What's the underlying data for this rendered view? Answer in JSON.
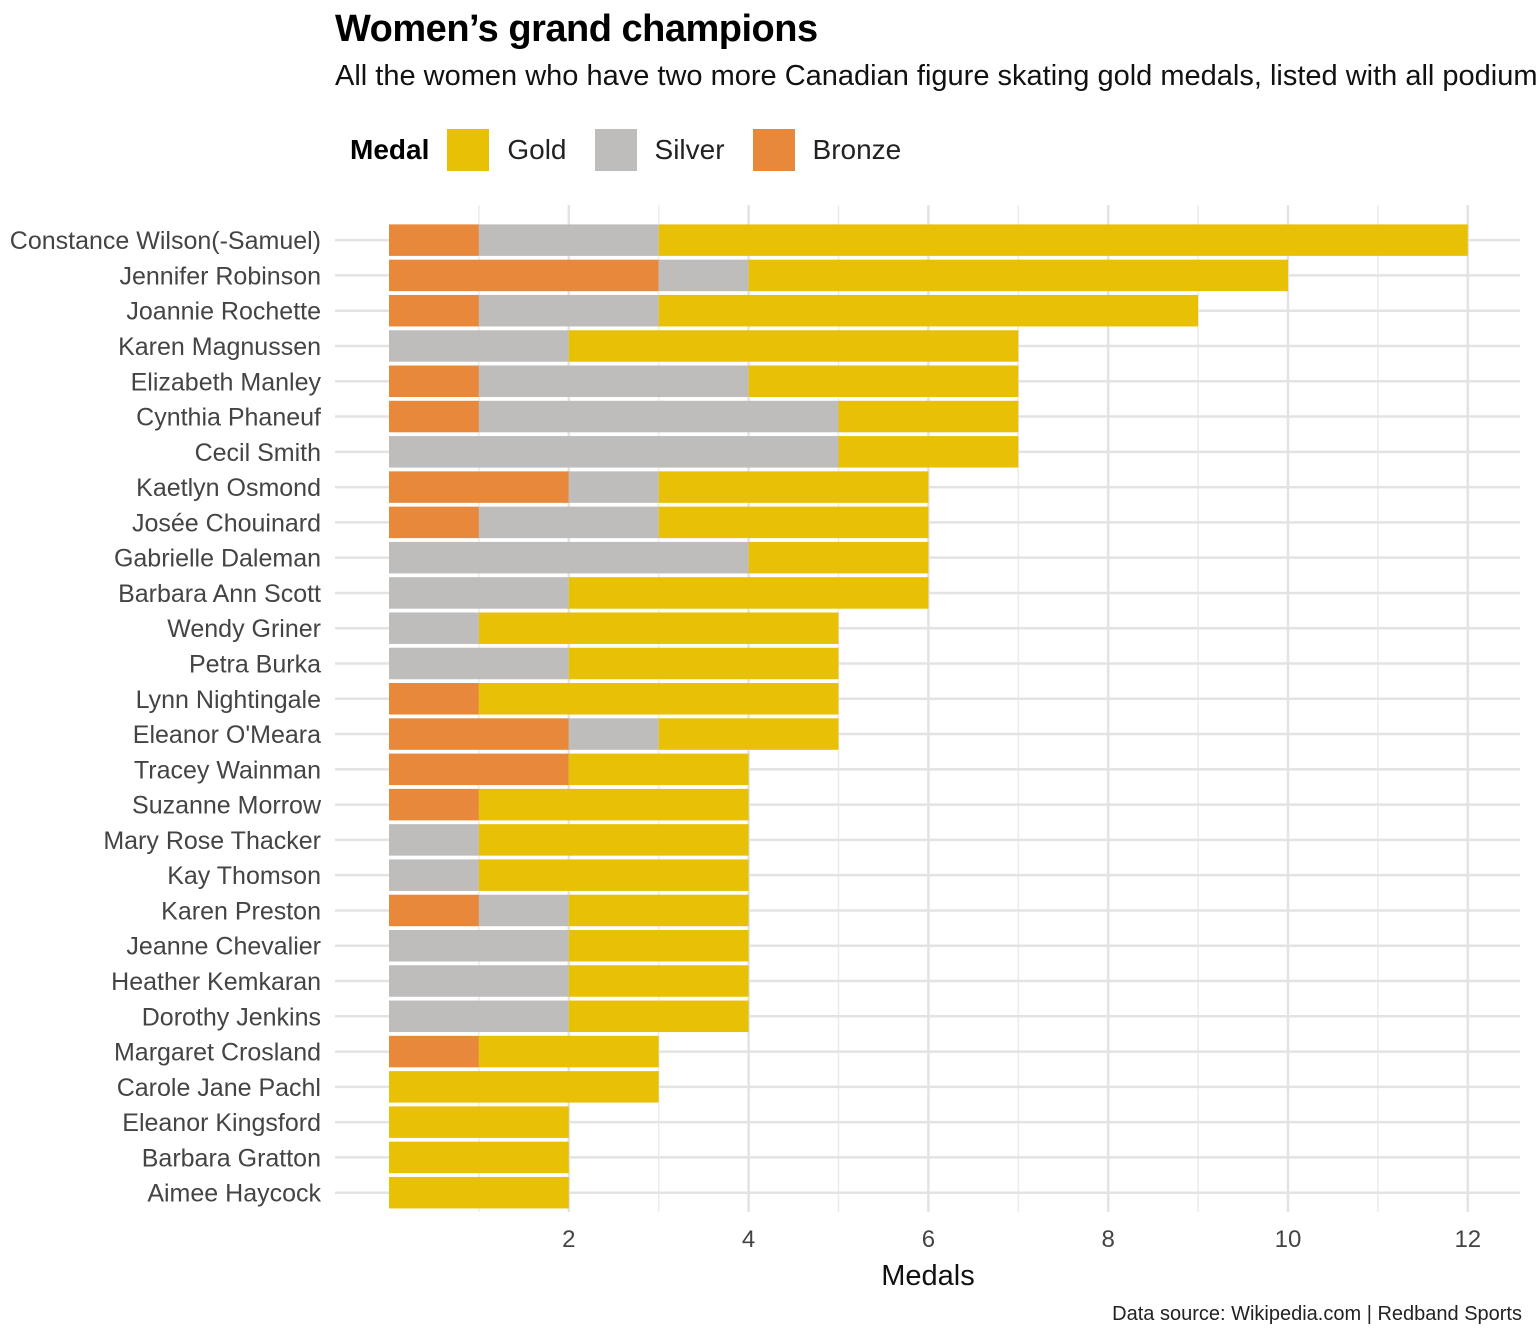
{
  "chart_data": {
    "type": "bar",
    "orientation": "horizontal",
    "stacked": true,
    "title": "Women’s grand champions",
    "subtitle": "All the women who have two more Canadian figure skating gold medals, listed with all podium finishes",
    "xlabel": "Medals",
    "caption": "Data source: Wikipedia.com  |  Redband Sports",
    "xlim": [
      0,
      12.6
    ],
    "xticks": [
      2,
      4,
      6,
      8,
      10,
      12
    ],
    "legend_title": "Medal",
    "legend_position": "top-left",
    "grid": true,
    "categories": [
      "Constance Wilson(-Samuel)",
      "Jennifer Robinson",
      "Joannie Rochette",
      "Karen Magnussen",
      "Elizabeth Manley",
      "Cynthia Phaneuf",
      "Cecil Smith",
      "Kaetlyn Osmond",
      "Josée Chouinard",
      "Gabrielle Daleman",
      "Barbara Ann Scott",
      "Wendy Griner",
      "Petra Burka",
      "Lynn Nightingale",
      "Eleanor O'Meara",
      "Tracey Wainman",
      "Suzanne Morrow",
      "Mary Rose Thacker",
      "Kay Thomson",
      "Karen Preston",
      "Jeanne Chevalier",
      "Heather Kemkaran",
      "Dorothy Jenkins",
      "Margaret Crosland",
      "Carole Jane Pachl",
      "Eleanor Kingsford",
      "Barbara Gratton",
      "Aimee Haycock"
    ],
    "series": [
      {
        "name": "Gold",
        "color": "#E8C107",
        "values": [
          9,
          6,
          6,
          5,
          3,
          2,
          2,
          3,
          3,
          2,
          4,
          4,
          3,
          4,
          2,
          2,
          3,
          3,
          3,
          2,
          2,
          2,
          2,
          2,
          3,
          2,
          2,
          2
        ]
      },
      {
        "name": "Silver",
        "color": "#BFBCBC",
        "values": [
          2,
          1,
          2,
          2,
          3,
          4,
          5,
          1,
          2,
          4,
          2,
          1,
          2,
          0,
          1,
          0,
          0,
          1,
          1,
          1,
          2,
          2,
          2,
          0,
          0,
          0,
          0,
          0
        ]
      },
      {
        "name": "Bronze",
        "color": "#E8883A",
        "values": [
          1,
          3,
          1,
          0,
          1,
          1,
          0,
          2,
          1,
          0,
          0,
          0,
          0,
          1,
          2,
          2,
          1,
          0,
          0,
          1,
          0,
          0,
          0,
          1,
          0,
          0,
          0,
          0
        ]
      }
    ]
  }
}
